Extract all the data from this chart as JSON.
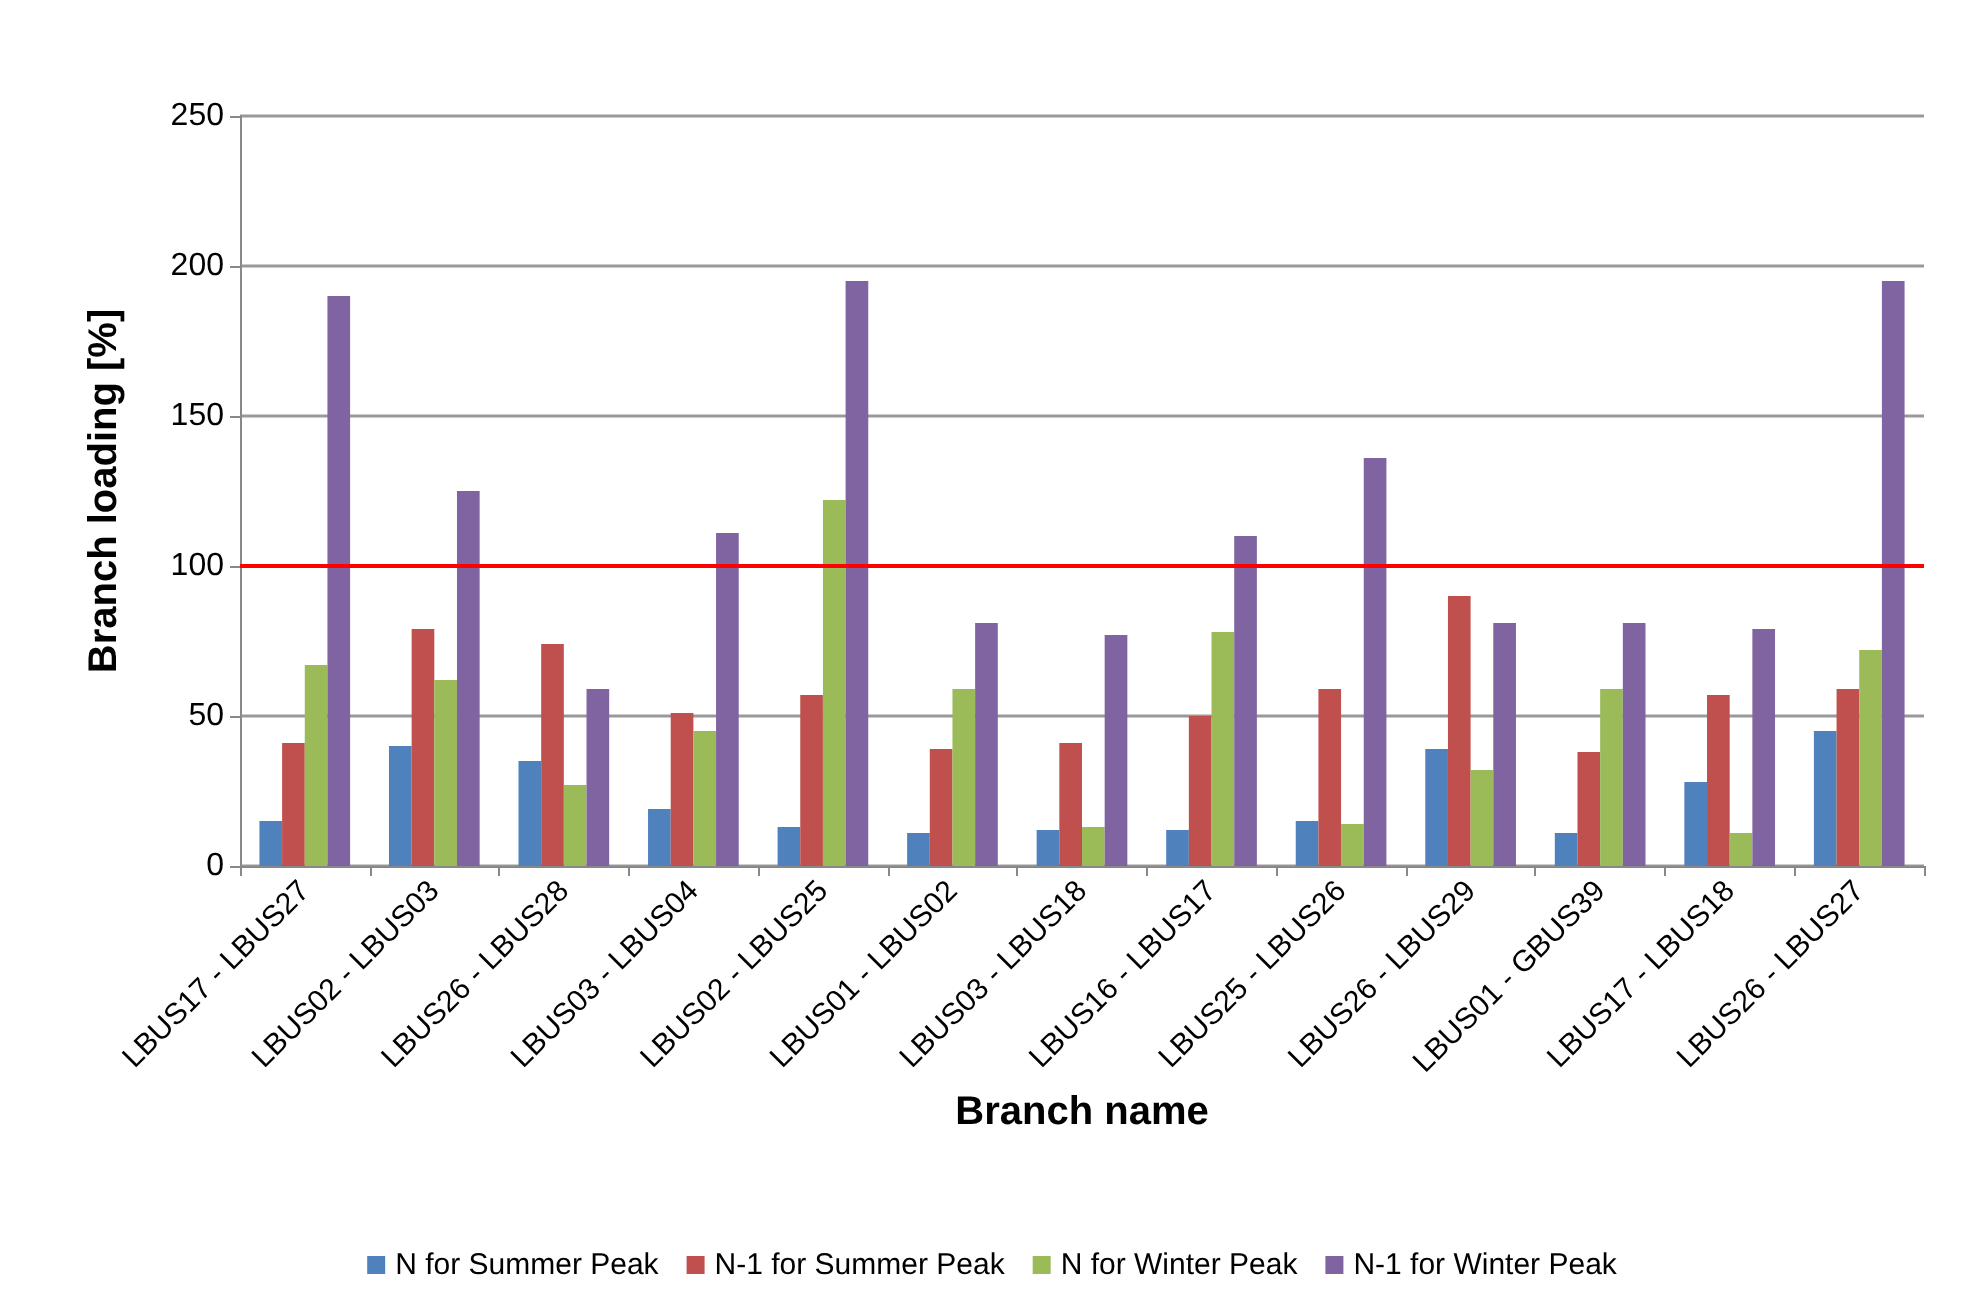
{
  "chart_data": {
    "type": "bar",
    "xlabel": "Branch name",
    "ylabel": "Branch loading [%]",
    "categories": [
      "LBUS17 - LBUS27",
      "LBUS02 - LBUS03",
      "LBUS26 - LBUS28",
      "LBUS03 - LBUS04",
      "LBUS02 - LBUS25",
      "LBUS01 - LBUS02",
      "LBUS03 - LBUS18",
      "LBUS16 - LBUS17",
      "LBUS25 - LBUS26",
      "LBUS26 - LBUS29",
      "LBUS01 - GBUS39",
      "LBUS17 - LBUS18",
      "LBUS26 - LBUS27"
    ],
    "series": [
      {
        "name": "N for Summer Peak",
        "color": "#4f81bd",
        "values": [
          15,
          40,
          35,
          19,
          13,
          11,
          12,
          12,
          15,
          39,
          11,
          28,
          45
        ]
      },
      {
        "name": "N-1 for Summer Peak",
        "color": "#c0504d",
        "values": [
          41,
          79,
          74,
          51,
          57,
          39,
          41,
          50,
          59,
          90,
          38,
          57,
          59
        ]
      },
      {
        "name": "N for Winter Peak",
        "color": "#9bbb59",
        "values": [
          67,
          62,
          27,
          45,
          122,
          59,
          13,
          78,
          14,
          32,
          59,
          11,
          72
        ]
      },
      {
        "name": "N-1 for Winter Peak",
        "color": "#8064a2",
        "values": [
          190,
          125,
          59,
          111,
          195,
          81,
          77,
          110,
          136,
          81,
          81,
          79,
          195
        ]
      }
    ],
    "ylim": [
      0,
      250
    ],
    "yticks": [
      0,
      50,
      100,
      150,
      200,
      250
    ],
    "grid": "y",
    "legend": "bottom",
    "ref_lines": [
      {
        "axis": "y",
        "value": 100,
        "color": "#ff0000",
        "line_style": "solid"
      }
    ]
  }
}
